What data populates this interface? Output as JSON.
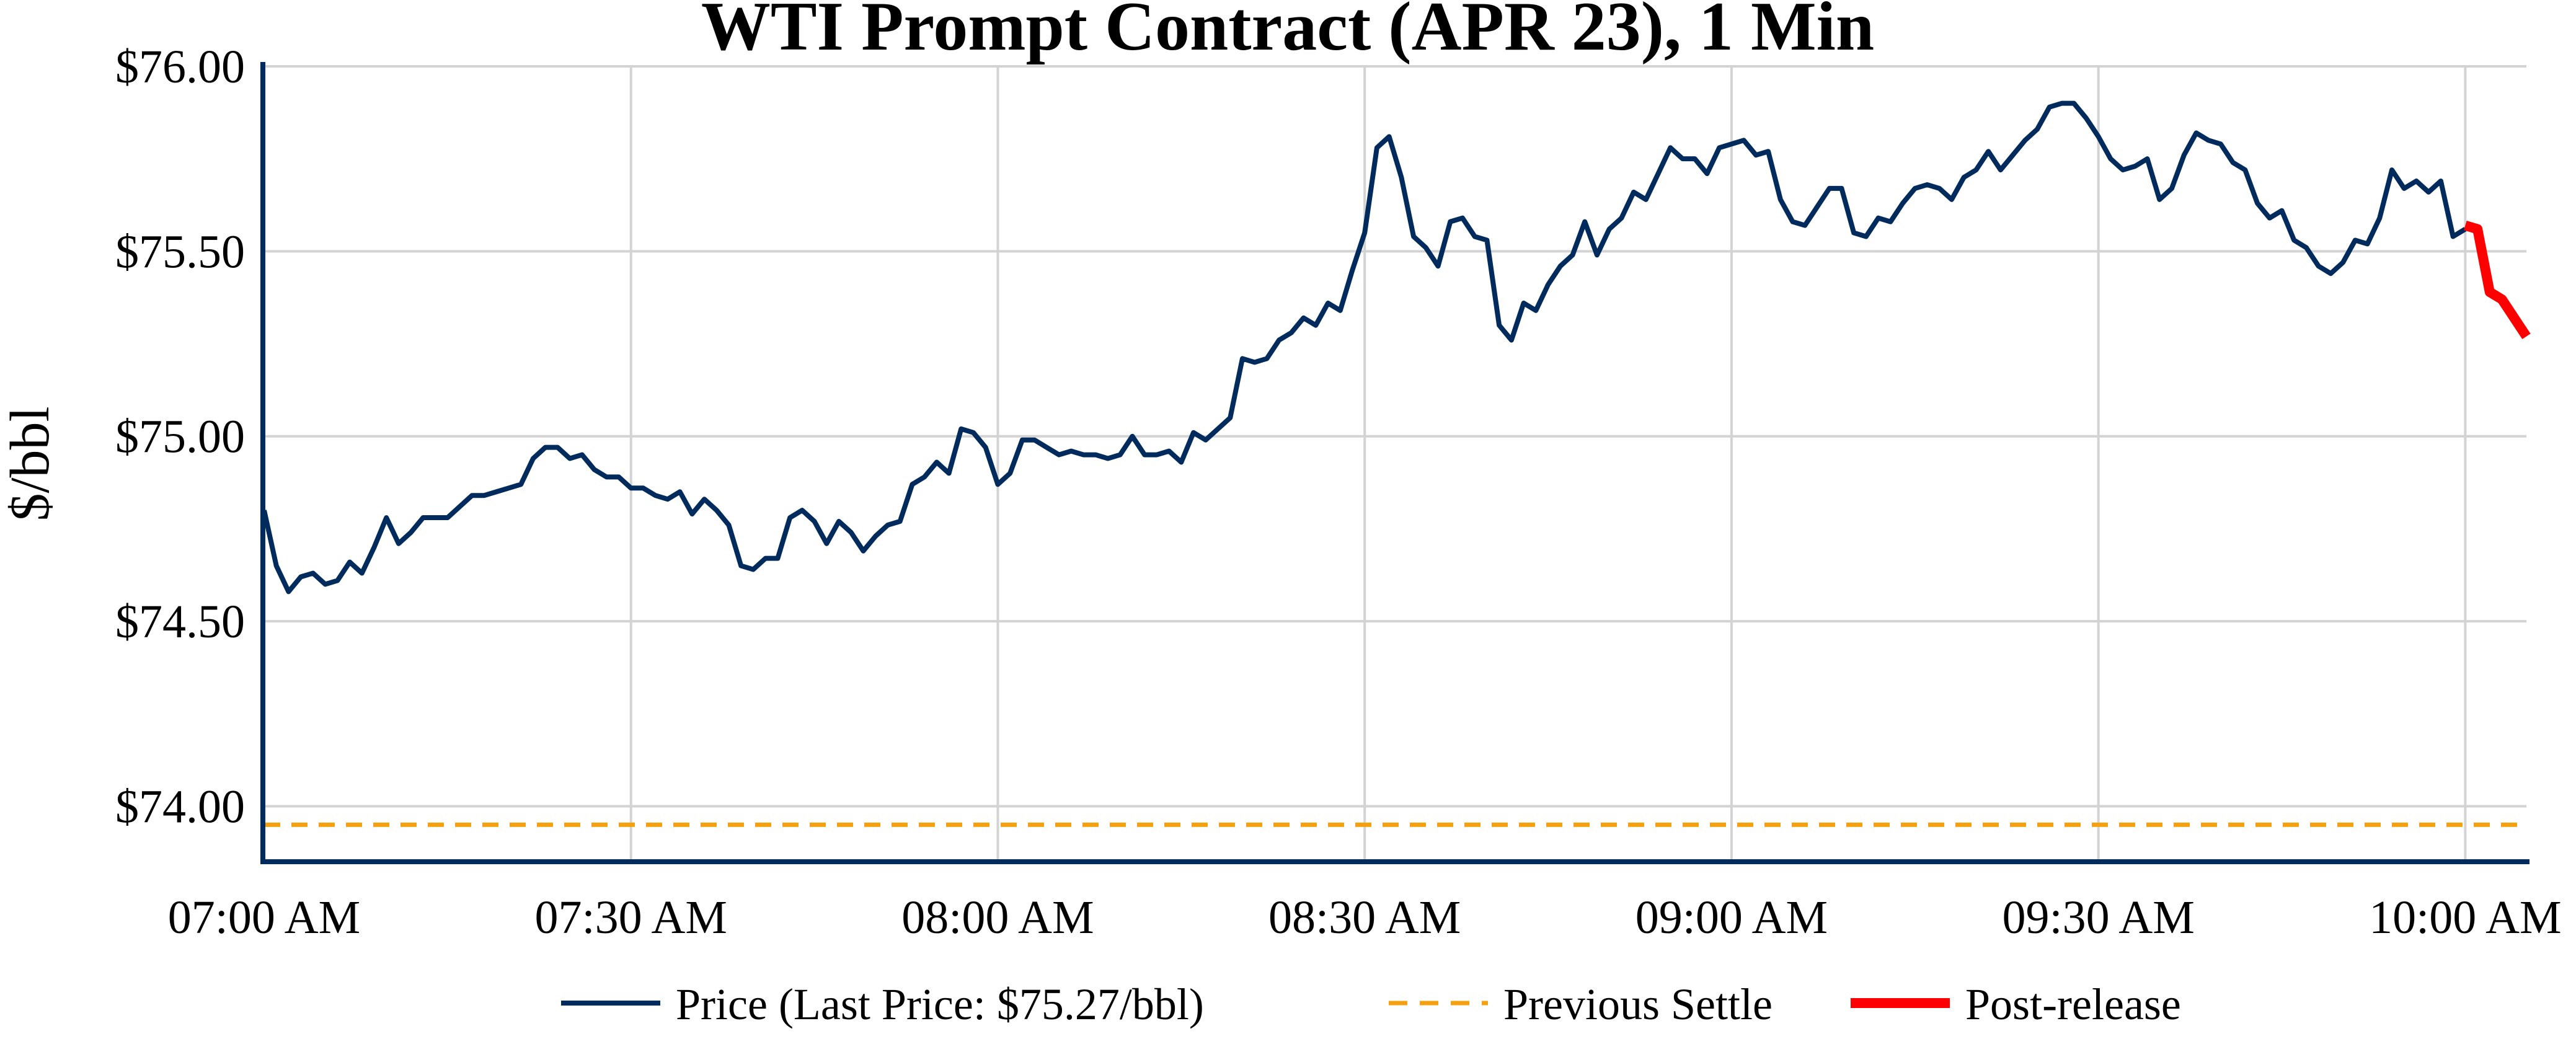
{
  "chart_data": {
    "type": "line",
    "title": "WTI Prompt Contract (APR 23), 1 Min",
    "ylabel": "$/bbl",
    "xlabel": "",
    "x_range": [
      "07:00",
      "10:05"
    ],
    "ylim": [
      73.85,
      76.0
    ],
    "grid": true,
    "legend_placement": "bottom",
    "x_ticks": [
      {
        "time": "07:00",
        "label": "07:00 AM"
      },
      {
        "time": "07:30",
        "label": "07:30 AM"
      },
      {
        "time": "08:00",
        "label": "08:00 AM"
      },
      {
        "time": "08:30",
        "label": "08:30 AM"
      },
      {
        "time": "09:00",
        "label": "09:00 AM"
      },
      {
        "time": "09:30",
        "label": "09:30 AM"
      },
      {
        "time": "10:00",
        "label": "10:00 AM"
      }
    ],
    "y_ticks": [
      {
        "value": 74.0,
        "label": "$74.00"
      },
      {
        "value": 74.5,
        "label": "$74.50"
      },
      {
        "value": 75.0,
        "label": "$75.00"
      },
      {
        "value": 75.5,
        "label": "$75.50"
      },
      {
        "value": 76.0,
        "label": "$76.00"
      }
    ],
    "series": [
      {
        "name": "Price (Last Price: $75.27/bbl)",
        "color": "#002b5c",
        "style": "solid",
        "start": "07:00",
        "interval_minutes": 1,
        "values": [
          74.8,
          74.65,
          74.58,
          74.62,
          74.63,
          74.6,
          74.61,
          74.66,
          74.63,
          74.7,
          74.78,
          74.71,
          74.74,
          74.78,
          74.78,
          74.78,
          74.81,
          74.84,
          74.84,
          74.85,
          74.86,
          74.87,
          74.94,
          74.97,
          74.97,
          74.94,
          74.95,
          74.91,
          74.89,
          74.89,
          74.86,
          74.86,
          74.84,
          74.83,
          74.85,
          74.79,
          74.83,
          74.8,
          74.76,
          74.65,
          74.64,
          74.67,
          74.67,
          74.78,
          74.8,
          74.77,
          74.71,
          74.77,
          74.74,
          74.69,
          74.73,
          74.76,
          74.77,
          74.87,
          74.89,
          74.93,
          74.9,
          75.02,
          75.01,
          74.97,
          74.87,
          74.9,
          74.99,
          74.99,
          74.97,
          74.95,
          74.96,
          74.95,
          74.95,
          74.94,
          74.95,
          75.0,
          74.95,
          74.95,
          74.96,
          74.93,
          75.01,
          74.99,
          75.02,
          75.05,
          75.21,
          75.2,
          75.21,
          75.26,
          75.28,
          75.32,
          75.3,
          75.36,
          75.34,
          75.45,
          75.55,
          75.78,
          75.81,
          75.7,
          75.54,
          75.51,
          75.46,
          75.58,
          75.59,
          75.54,
          75.53,
          75.3,
          75.26,
          75.36,
          75.34,
          75.41,
          75.46,
          75.49,
          75.58,
          75.49,
          75.56,
          75.59,
          75.66,
          75.64,
          75.71,
          75.78,
          75.75,
          75.75,
          75.71,
          75.78,
          75.79,
          75.8,
          75.76,
          75.77,
          75.64,
          75.58,
          75.57,
          75.62,
          75.67,
          75.67,
          75.55,
          75.54,
          75.59,
          75.58,
          75.63,
          75.67,
          75.68,
          75.67,
          75.64,
          75.7,
          75.72,
          75.77,
          75.72,
          75.76,
          75.8,
          75.83,
          75.89,
          75.9,
          75.9,
          75.86,
          75.81,
          75.75,
          75.72,
          75.73,
          75.75,
          75.64,
          75.67,
          75.76,
          75.82,
          75.8,
          75.79,
          75.74,
          75.72,
          75.63,
          75.59,
          75.61,
          75.53,
          75.51,
          75.46,
          75.44,
          75.47,
          75.53,
          75.52,
          75.59,
          75.72,
          75.67,
          75.69,
          75.66,
          75.69,
          75.54,
          75.56
        ]
      },
      {
        "name": "Previous Settle",
        "color": "#f5a00f",
        "style": "dashed",
        "constant": 73.95
      },
      {
        "name": "Post-release",
        "color": "#ff0000",
        "style": "solid-thick",
        "start": "10:00",
        "interval_minutes": 1,
        "values": [
          75.57,
          75.56,
          75.39,
          75.37,
          75.32,
          75.27
        ]
      }
    ]
  }
}
